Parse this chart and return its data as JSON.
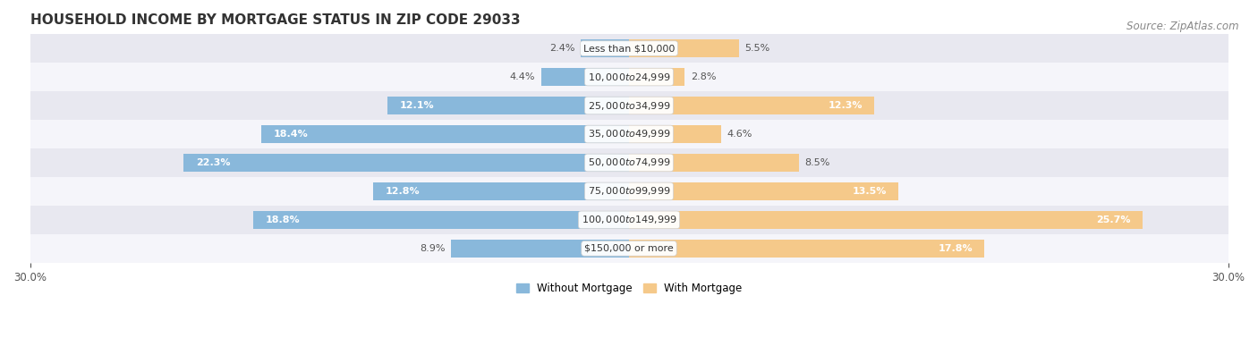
{
  "title": "HOUSEHOLD INCOME BY MORTGAGE STATUS IN ZIP CODE 29033",
  "source": "Source: ZipAtlas.com",
  "categories": [
    "Less than $10,000",
    "$10,000 to $24,999",
    "$25,000 to $34,999",
    "$35,000 to $49,999",
    "$50,000 to $74,999",
    "$75,000 to $99,999",
    "$100,000 to $149,999",
    "$150,000 or more"
  ],
  "without_mortgage": [
    2.4,
    4.4,
    12.1,
    18.4,
    22.3,
    12.8,
    18.8,
    8.9
  ],
  "with_mortgage": [
    5.5,
    2.8,
    12.3,
    4.6,
    8.5,
    13.5,
    25.7,
    17.8
  ],
  "color_without": "#89b8db",
  "color_with": "#f5c98a",
  "axis_max": 30.0,
  "bg_dark": "#e8e8f0",
  "bg_light": "#f5f5fa",
  "title_fontsize": 11,
  "source_fontsize": 8.5,
  "label_fontsize": 8,
  "tick_fontsize": 8.5,
  "legend_fontsize": 8.5,
  "bar_height": 0.62
}
